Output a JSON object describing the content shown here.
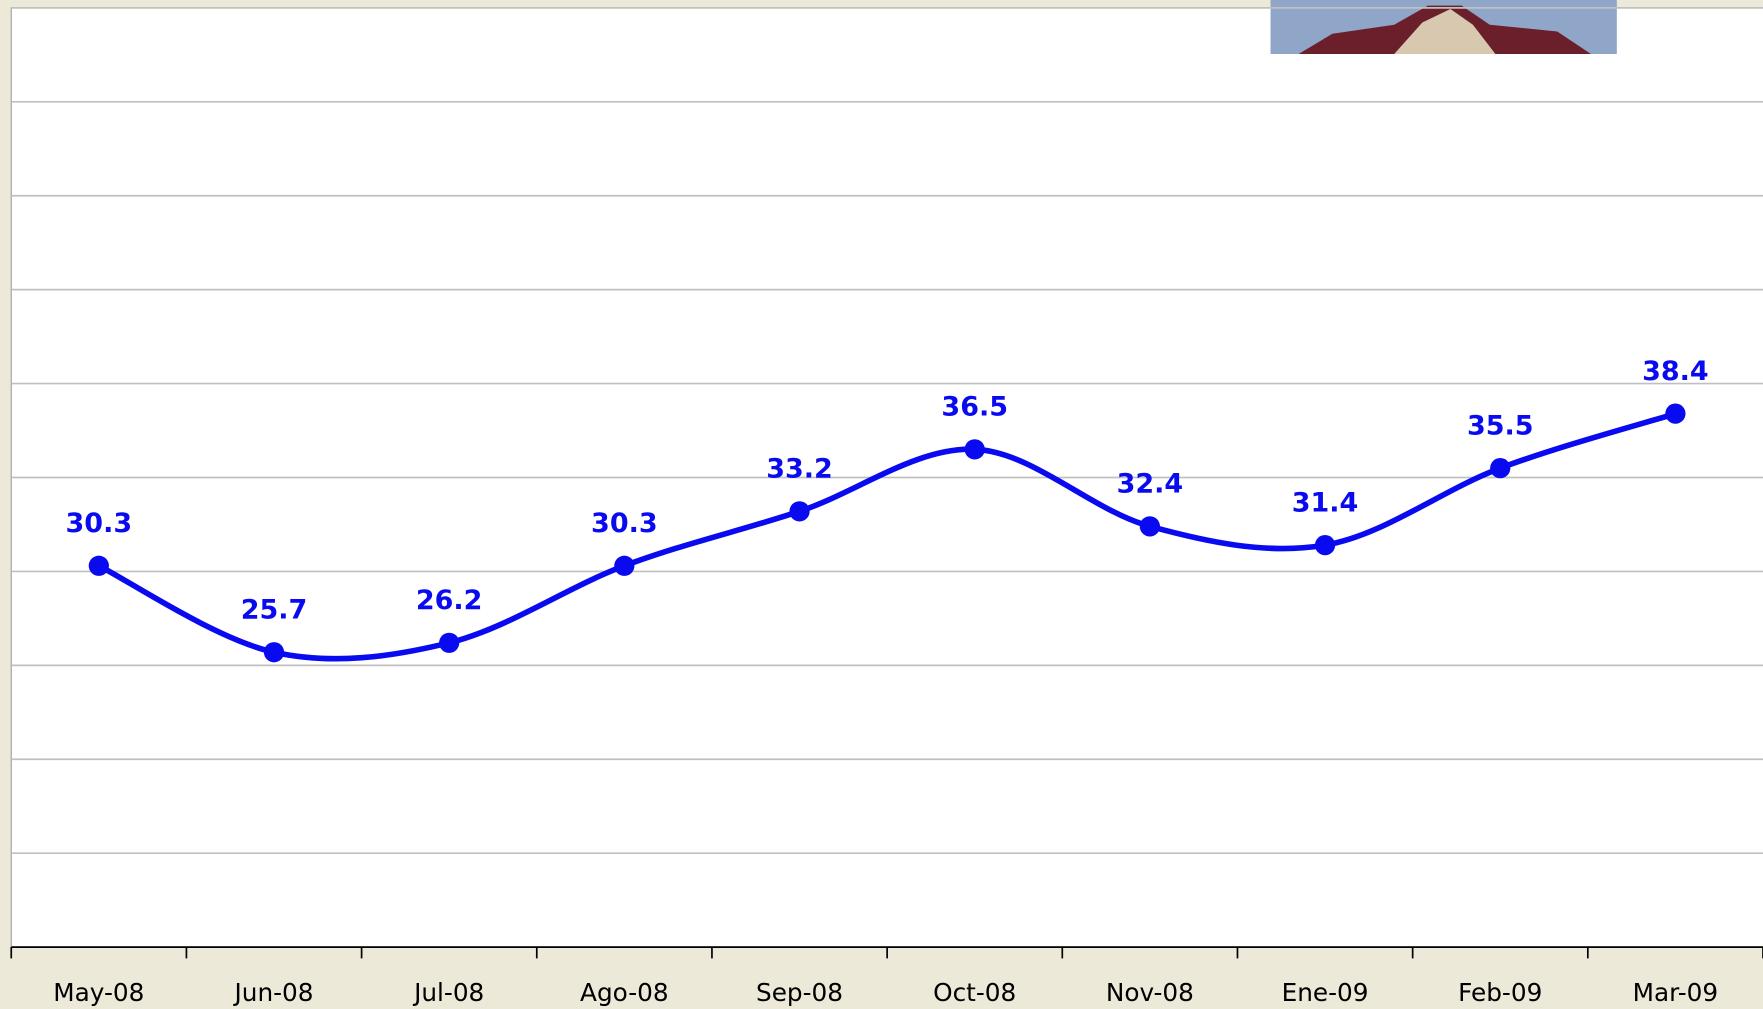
{
  "chart_data": {
    "type": "line",
    "categories": [
      "May-08",
      "Jun-08",
      "Jul-08",
      "Ago-08",
      "Sep-08",
      "Oct-08",
      "Nov-08",
      "Ene-09",
      "Feb-09",
      "Mar-09"
    ],
    "values": [
      30.3,
      25.7,
      26.2,
      30.3,
      33.2,
      36.5,
      32.4,
      31.4,
      35.5,
      38.4
    ],
    "color": "#0a0af0",
    "ylim": [
      10,
      60
    ],
    "yticks": [
      10,
      15,
      20,
      25,
      30,
      35,
      40,
      45,
      50,
      55,
      60
    ],
    "grid": true,
    "smooth": true
  }
}
